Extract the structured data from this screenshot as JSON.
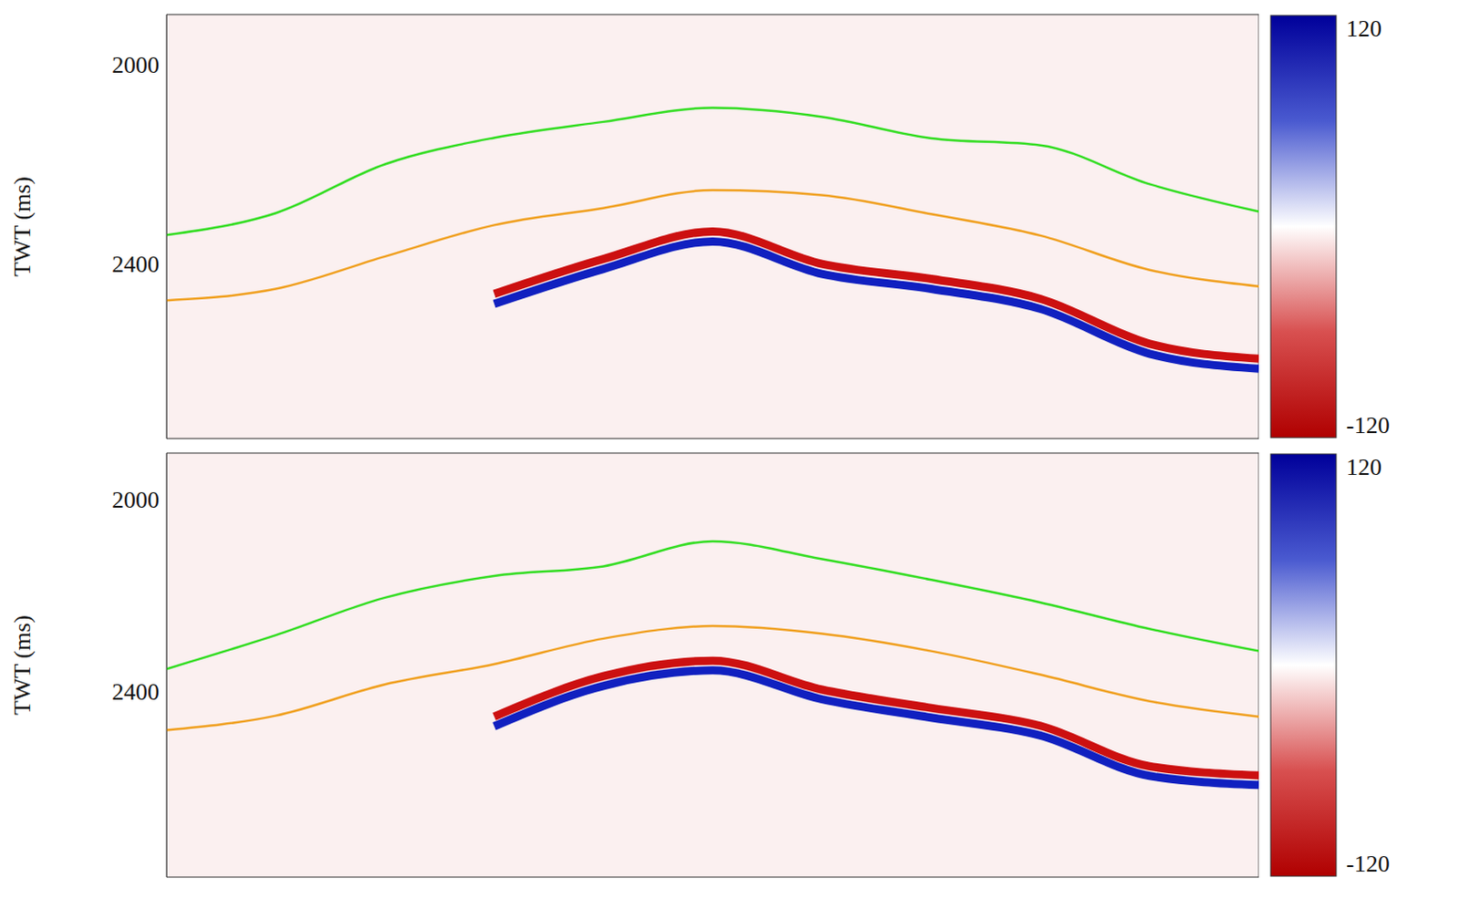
{
  "chart_data": [
    {
      "type": "line",
      "y_label": "TWT (ms)",
      "x": [
        0,
        10,
        20,
        30,
        40,
        50,
        60,
        70,
        80,
        90,
        100
      ],
      "xlim": [
        0,
        100
      ],
      "ylim": [
        1900,
        2750
      ],
      "yticks": [
        2000,
        2400
      ],
      "grid": true,
      "tick_labels": "y",
      "series": [
        {
          "color": "#cc1010",
          "values": [
            null,
            null,
            null,
            2460,
            2390,
            2335,
            2400,
            2430,
            2470,
            2560,
            2590
          ]
        },
        {
          "color": "#1020c0",
          "values": [
            null,
            null,
            null,
            2480,
            2410,
            2355,
            2420,
            2450,
            2490,
            2580,
            2610
          ]
        },
        {
          "color": "#33dd22",
          "values": [
            2342,
            2298,
            2200,
            2147,
            2115,
            2087,
            2105,
            2148,
            2162,
            2240,
            2295
          ]
        },
        {
          "color": "#f0a020",
          "values": [
            2473,
            2450,
            2385,
            2322,
            2288,
            2252,
            2262,
            2300,
            2343,
            2412,
            2445
          ]
        }
      ],
      "colorbar": {
        "range": [
          -120,
          120
        ],
        "ticks": [
          -120,
          120
        ]
      }
    },
    {
      "type": "line",
      "y_label": "TWT (ms)",
      "x": [
        0,
        10,
        20,
        30,
        40,
        50,
        60,
        70,
        80,
        90,
        100
      ],
      "xlim": [
        0,
        100
      ],
      "ylim": [
        1905,
        2785
      ],
      "yticks": [
        2000,
        2400
      ],
      "grid": true,
      "tick_labels": "y",
      "series": [
        {
          "color": "#cc1010",
          "values": [
            null,
            null,
            null,
            2452,
            2368,
            2336,
            2396,
            2434,
            2471,
            2555,
            2574
          ]
        },
        {
          "color": "#1020c0",
          "values": [
            null,
            null,
            null,
            2472,
            2388,
            2356,
            2416,
            2454,
            2491,
            2575,
            2594
          ]
        },
        {
          "color": "#33dd22",
          "values": [
            2353,
            2283,
            2205,
            2160,
            2140,
            2088,
            2125,
            2168,
            2215,
            2270,
            2316
          ]
        },
        {
          "color": "#f0a020",
          "values": [
            2480,
            2450,
            2385,
            2343,
            2290,
            2264,
            2280,
            2316,
            2365,
            2420,
            2452
          ]
        }
      ],
      "colorbar": {
        "range": [
          -120,
          120
        ],
        "ticks": [
          -120,
          120
        ]
      }
    }
  ]
}
